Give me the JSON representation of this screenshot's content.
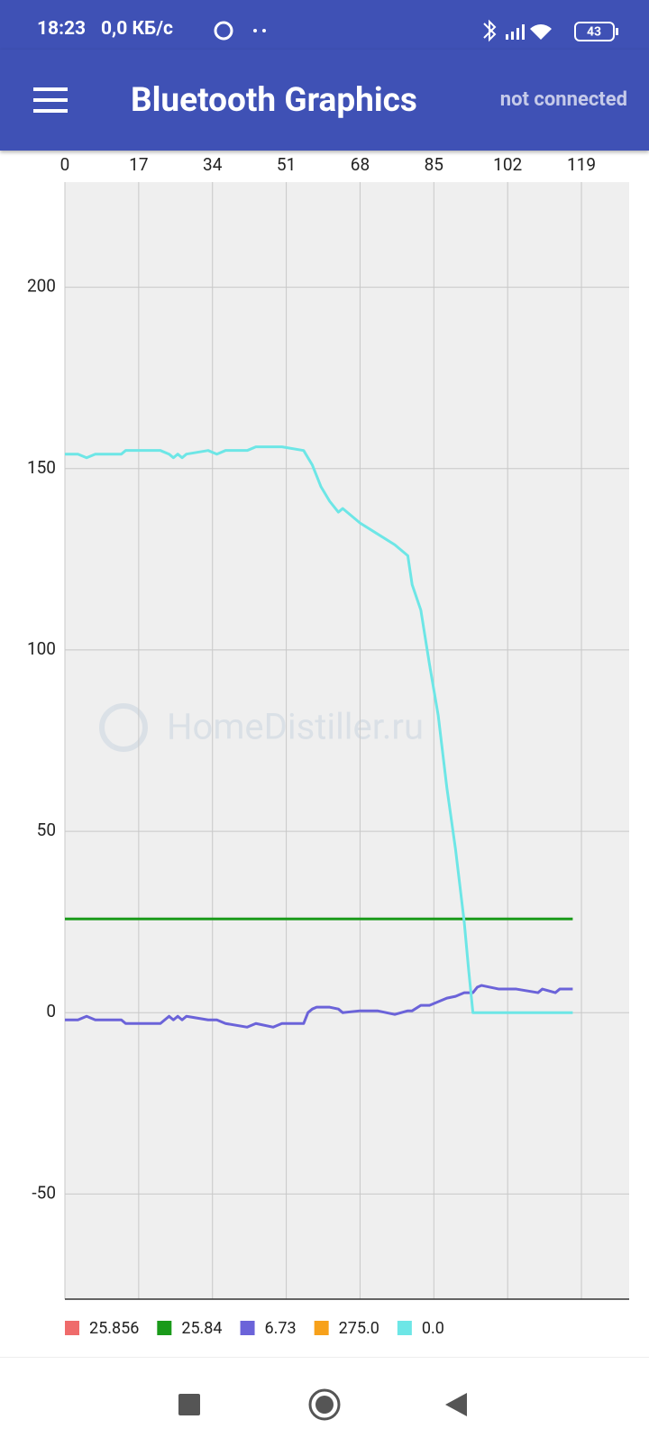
{
  "ui": {
    "time": "18:23",
    "net_speed": "0,0 КБ/с",
    "battery": "43",
    "app_title": "Bluetooth Graphics",
    "status": "not connected",
    "watermark": "HomeDistiller.ru"
  },
  "chart_data": {
    "type": "line",
    "x": [
      0,
      3,
      5,
      7,
      10,
      13,
      14,
      17,
      22,
      24,
      25,
      26,
      27,
      28,
      33,
      35,
      37,
      42,
      44,
      48,
      50,
      55,
      56,
      57,
      58,
      59,
      61,
      63,
      64,
      68,
      72,
      76,
      79,
      80,
      82,
      84,
      86,
      88,
      90,
      92,
      93,
      94,
      95,
      96,
      100,
      104,
      109,
      110,
      113,
      114,
      117
    ],
    "series": [
      {
        "name": "25.856",
        "color": "#ef6b6b",
        "values": [
          null,
          null,
          null,
          null,
          null,
          null,
          null,
          null,
          null,
          null,
          null,
          null,
          null,
          null,
          null,
          null,
          null,
          null,
          null,
          null,
          null,
          null,
          null,
          null,
          null,
          null,
          null,
          null,
          null,
          null,
          null,
          null,
          null,
          null,
          null,
          null,
          null,
          null,
          null,
          null,
          null,
          null,
          null,
          null,
          null,
          null,
          null,
          null,
          null,
          null,
          null
        ]
      },
      {
        "name": "25.84",
        "color": "#1a9a1a",
        "values": [
          25.84,
          25.84,
          25.84,
          25.84,
          25.84,
          25.84,
          25.84,
          25.84,
          25.84,
          25.84,
          25.84,
          25.84,
          25.84,
          25.84,
          25.84,
          25.84,
          25.84,
          25.84,
          25.84,
          25.84,
          25.84,
          25.84,
          25.84,
          25.84,
          25.84,
          25.84,
          25.84,
          25.84,
          25.84,
          25.84,
          25.84,
          25.84,
          25.84,
          25.84,
          25.84,
          25.84,
          25.84,
          25.84,
          25.84,
          25.84,
          25.84,
          25.84,
          25.84,
          25.84,
          25.84,
          25.84,
          25.84,
          25.84,
          25.84,
          25.84,
          25.84
        ]
      },
      {
        "name": "6.73",
        "color": "#6b63d9",
        "values": [
          -2,
          -2,
          -1,
          -2,
          -2,
          -2,
          -3,
          -3,
          -3,
          -1,
          -2,
          -1,
          -2,
          -1,
          -2,
          -2,
          -3,
          -4,
          -3,
          -4,
          -3,
          -3,
          0,
          1,
          1.5,
          1.5,
          1.5,
          1,
          0,
          0.5,
          0.5,
          -0.5,
          0.5,
          0.5,
          2,
          2,
          3,
          4,
          4.5,
          5.5,
          5.5,
          5.5,
          7,
          7.5,
          6.5,
          6.5,
          5.5,
          6.5,
          5.5,
          6.5,
          6.5
        ]
      },
      {
        "name": "275.0",
        "color": "#f7a11a",
        "values": [
          null,
          null,
          null,
          null,
          null,
          null,
          null,
          null,
          null,
          null,
          null,
          null,
          null,
          null,
          null,
          null,
          null,
          null,
          null,
          null,
          null,
          null,
          null,
          null,
          null,
          null,
          null,
          null,
          null,
          null,
          null,
          null,
          null,
          null,
          null,
          null,
          null,
          null,
          null,
          null,
          null,
          null,
          null,
          null,
          null,
          null,
          null,
          null,
          null,
          null,
          null
        ]
      },
      {
        "name": "0.0",
        "color": "#6de6e6",
        "values": [
          154,
          154,
          153,
          154,
          154,
          154,
          155,
          155,
          155,
          154,
          153,
          154,
          153,
          154,
          155,
          154,
          155,
          155,
          156,
          156,
          156,
          155,
          153,
          151,
          148,
          145,
          141,
          138,
          139,
          135,
          132,
          129,
          126,
          118,
          111,
          96,
          82,
          62,
          45,
          25,
          12,
          0,
          0,
          0,
          0,
          0,
          0,
          0,
          0,
          0,
          0
        ]
      }
    ],
    "xlim": [
      0,
      130
    ],
    "ylim": [
      -79,
      229
    ],
    "xticks": [
      0,
      17,
      34,
      51,
      68,
      85,
      102,
      119
    ],
    "yticks": [
      -50,
      0,
      50,
      100,
      150,
      200
    ],
    "grid": true
  }
}
